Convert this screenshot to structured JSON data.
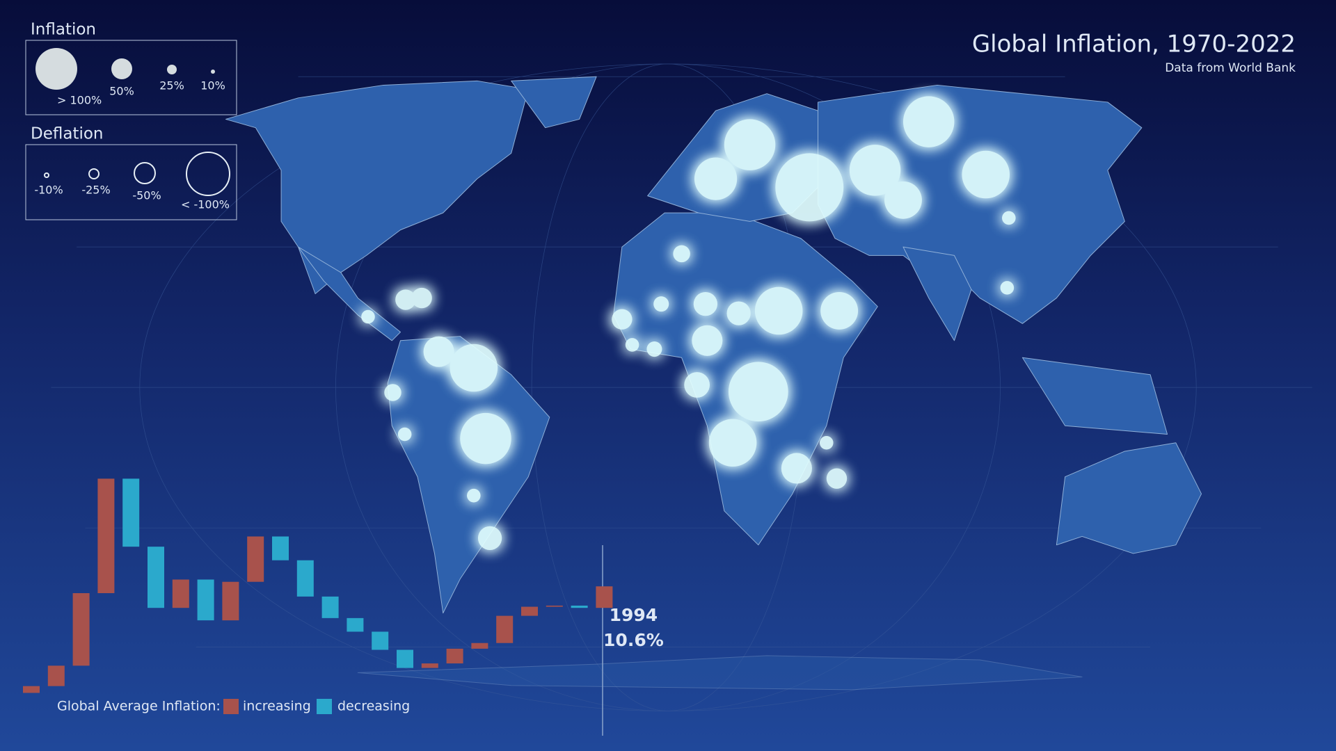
{
  "header": {
    "title": "Global Inflation, 1970-2022",
    "subtitle": "Data from World Bank"
  },
  "legend": {
    "inflation": {
      "title": "Inflation",
      "labels": [
        "> 100%",
        "50%",
        "25%",
        "10%"
      ]
    },
    "deflation": {
      "title": "Deflation",
      "labels": [
        "-10%",
        "-25%",
        "-50%",
        "< -100%"
      ]
    }
  },
  "chart_data": {
    "type": "waterfall",
    "legend_title": "Global Average Inflation:",
    "legend_items": [
      {
        "name": "increasing",
        "color": "#a8524c"
      },
      {
        "name": "decreasing",
        "color": "#2ba9cc"
      }
    ],
    "categories": [
      null,
      null,
      null,
      null,
      null,
      null,
      null,
      null,
      null,
      null,
      null,
      null,
      null,
      null,
      null,
      null,
      null,
      null,
      null,
      null,
      null,
      null,
      null,
      null,
      "1994"
    ],
    "values": [
      1.2,
      1.8,
      3.6,
      10.0,
      20.1,
      14.1,
      8.7,
      11.2,
      7.6,
      11.0,
      15.0,
      12.9,
      9.7,
      7.8,
      6.6,
      5.0,
      3.4,
      3.8,
      5.1,
      5.6,
      8.0,
      8.8,
      8.9,
      8.7,
      10.6
    ],
    "value_labels": [
      null,
      null,
      null,
      null,
      null,
      null,
      null,
      null,
      null,
      null,
      null,
      null,
      null,
      null,
      null,
      null,
      null,
      null,
      null,
      null,
      null,
      null,
      null,
      null,
      "10.6%"
    ]
  }
}
